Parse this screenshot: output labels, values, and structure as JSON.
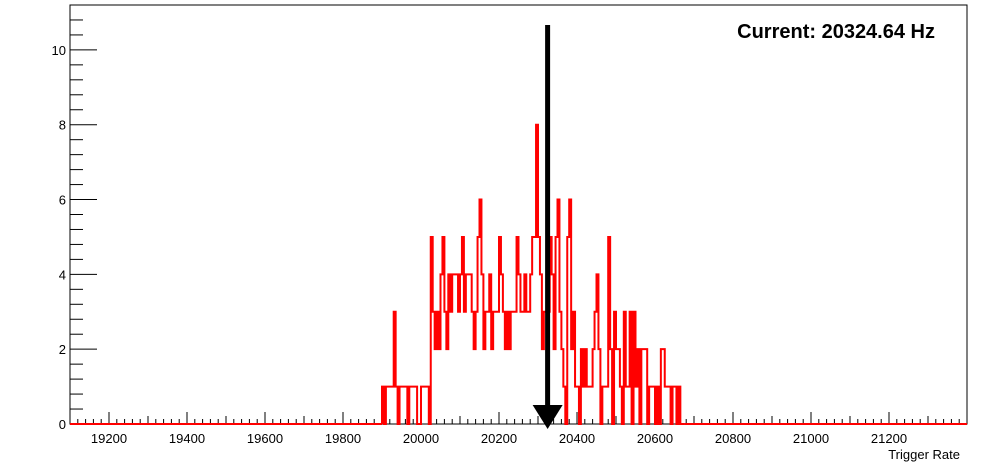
{
  "chart_data": {
    "type": "histogram",
    "title": "",
    "xlabel": "Trigger Rate",
    "ylabel": "",
    "xlim": [
      19100,
      21400
    ],
    "ylim": [
      0,
      11.2
    ],
    "x_ticks": [
      19200,
      19400,
      19600,
      19800,
      20000,
      20200,
      20400,
      20600,
      20800,
      21000,
      21200
    ],
    "y_ticks": [
      0,
      2,
      4,
      6,
      8,
      10
    ],
    "grid": false,
    "legend": "none",
    "bin_width": 5,
    "bin_start": 19900,
    "counts": [
      1,
      0,
      1,
      1,
      1,
      1,
      3,
      1,
      0,
      1,
      1,
      1,
      1,
      0,
      1,
      1,
      1,
      1,
      0,
      0,
      1,
      1,
      1,
      1,
      0,
      5,
      3,
      2,
      3,
      2,
      4,
      5,
      3,
      2,
      4,
      3,
      4,
      4,
      4,
      3,
      4,
      5,
      3,
      4,
      4,
      4,
      3,
      2,
      3,
      5,
      6,
      4,
      2,
      3,
      3,
      4,
      2,
      3,
      3,
      3,
      5,
      4,
      3,
      2,
      3,
      2,
      3,
      3,
      3,
      5,
      4,
      3,
      3,
      4,
      3,
      3,
      4,
      5,
      5,
      8,
      5,
      4,
      2,
      3,
      3,
      3,
      5,
      4,
      2,
      5,
      6,
      3,
      2,
      1,
      0,
      5,
      6,
      2,
      3,
      1,
      1,
      0,
      2,
      1,
      2,
      1,
      1,
      1,
      2,
      3,
      4,
      2,
      0,
      1,
      1,
      1,
      5,
      2,
      0,
      3,
      2,
      2,
      1,
      0,
      3,
      1,
      1,
      3,
      0,
      3,
      1,
      2,
      0,
      2,
      2,
      2,
      0,
      1,
      1,
      1,
      0,
      1,
      0,
      2,
      2,
      1,
      1,
      1,
      0,
      1,
      1,
      0,
      1,
      0,
      0
    ],
    "series": [
      {
        "values_ref": "counts",
        "color": "#ff0000"
      }
    ],
    "marker_x": 20324.64,
    "annotation": "Current: 20324.64 Hz"
  },
  "colors": {
    "histogram_line": "#ff0000",
    "marker": "#000000",
    "axis": "#000000"
  },
  "icons": {
    "marker_arrow": "down-arrow-icon"
  }
}
